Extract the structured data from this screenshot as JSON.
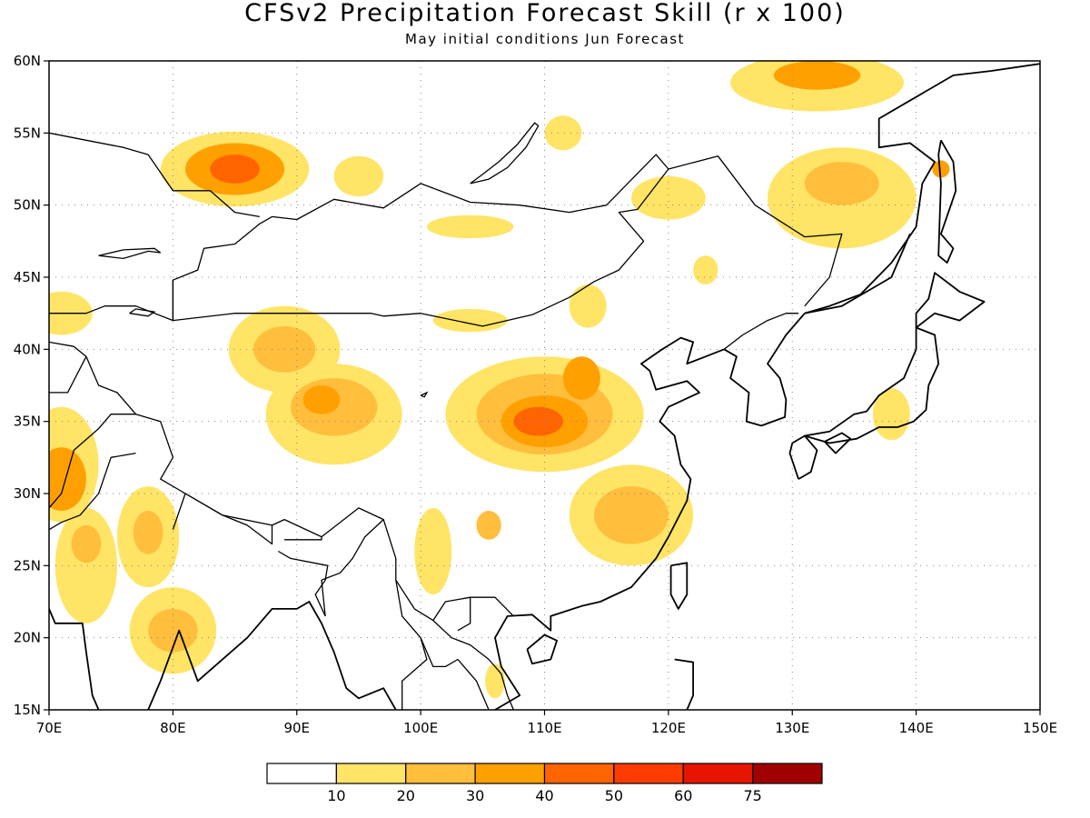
{
  "title": "CFSv2 Precipitation Forecast Skill (r x 100)",
  "subtitle": "May initial conditions  Jun Forecast",
  "map": {
    "lon_range": [
      70,
      150
    ],
    "lat_range": [
      15,
      60
    ],
    "lon_ticks": [
      {
        "value": 70,
        "label": "70E"
      },
      {
        "value": 80,
        "label": "80E"
      },
      {
        "value": 90,
        "label": "90E"
      },
      {
        "value": 100,
        "label": "100E"
      },
      {
        "value": 110,
        "label": "110E"
      },
      {
        "value": 120,
        "label": "120E"
      },
      {
        "value": 130,
        "label": "130E"
      },
      {
        "value": 140,
        "label": "140E"
      },
      {
        "value": 150,
        "label": "150E"
      }
    ],
    "lat_ticks": [
      {
        "value": 15,
        "label": "15N"
      },
      {
        "value": 20,
        "label": "20N"
      },
      {
        "value": 25,
        "label": "25N"
      },
      {
        "value": 30,
        "label": "30N"
      },
      {
        "value": 35,
        "label": "35N"
      },
      {
        "value": 40,
        "label": "40N"
      },
      {
        "value": 45,
        "label": "45N"
      },
      {
        "value": 50,
        "label": "50N"
      },
      {
        "value": 55,
        "label": "55N"
      },
      {
        "value": 60,
        "label": "60N"
      }
    ],
    "grid": "dotted"
  },
  "colorbar": {
    "colors": [
      "#ffffff",
      "#ffe466",
      "#ffbe3c",
      "#ffa000",
      "#ff6400",
      "#ff3c00",
      "#e61400",
      "#a00000"
    ],
    "labels": [
      "10",
      "20",
      "30",
      "40",
      "50",
      "60",
      "75"
    ]
  },
  "skill_regions": [
    {
      "lon": 85,
      "lat": 52.5,
      "rx": 6,
      "ry": 2.6,
      "level": 1
    },
    {
      "lon": 85,
      "lat": 52.5,
      "rx": 4,
      "ry": 1.8,
      "level": 3
    },
    {
      "lon": 85,
      "lat": 52.5,
      "rx": 2,
      "ry": 1,
      "level": 4
    },
    {
      "lon": 95,
      "lat": 52,
      "rx": 2,
      "ry": 1.4,
      "level": 1
    },
    {
      "lon": 132,
      "lat": 58.5,
      "rx": 7,
      "ry": 2,
      "level": 1
    },
    {
      "lon": 132,
      "lat": 59,
      "rx": 3.5,
      "ry": 1,
      "level": 3
    },
    {
      "lon": 134,
      "lat": 50.5,
      "rx": 6,
      "ry": 3.5,
      "level": 1
    },
    {
      "lon": 134,
      "lat": 51.5,
      "rx": 3,
      "ry": 1.5,
      "level": 2
    },
    {
      "lon": 89,
      "lat": 40,
      "rx": 4.5,
      "ry": 3,
      "level": 1
    },
    {
      "lon": 89,
      "lat": 40,
      "rx": 2.5,
      "ry": 1.6,
      "level": 2
    },
    {
      "lon": 93,
      "lat": 35.5,
      "rx": 5.5,
      "ry": 3.5,
      "level": 1
    },
    {
      "lon": 93,
      "lat": 36,
      "rx": 3.5,
      "ry": 2,
      "level": 2
    },
    {
      "lon": 92,
      "lat": 36.5,
      "rx": 1.5,
      "ry": 1,
      "level": 3
    },
    {
      "lon": 110,
      "lat": 35.5,
      "rx": 8,
      "ry": 4,
      "level": 1
    },
    {
      "lon": 110,
      "lat": 35.5,
      "rx": 5.5,
      "ry": 2.8,
      "level": 2
    },
    {
      "lon": 110,
      "lat": 35,
      "rx": 3.5,
      "ry": 1.8,
      "level": 3
    },
    {
      "lon": 109.5,
      "lat": 35,
      "rx": 2,
      "ry": 1,
      "level": 4
    },
    {
      "lon": 113,
      "lat": 38,
      "rx": 1.5,
      "ry": 1.5,
      "level": 3
    },
    {
      "lon": 117,
      "lat": 28.5,
      "rx": 5,
      "ry": 3.5,
      "level": 1
    },
    {
      "lon": 117,
      "lat": 28.5,
      "rx": 3,
      "ry": 2,
      "level": 2
    },
    {
      "lon": 71,
      "lat": 32,
      "rx": 3,
      "ry": 4,
      "level": 1
    },
    {
      "lon": 71,
      "lat": 31,
      "rx": 2,
      "ry": 2.2,
      "level": 3
    },
    {
      "lon": 73,
      "lat": 25,
      "rx": 2.5,
      "ry": 4,
      "level": 1
    },
    {
      "lon": 73,
      "lat": 26.5,
      "rx": 1.2,
      "ry": 1.3,
      "level": 2
    },
    {
      "lon": 78,
      "lat": 27,
      "rx": 2.5,
      "ry": 3.5,
      "level": 1
    },
    {
      "lon": 78,
      "lat": 27.3,
      "rx": 1.2,
      "ry": 1.5,
      "level": 2
    },
    {
      "lon": 80,
      "lat": 20.5,
      "rx": 3.5,
      "ry": 3,
      "level": 1
    },
    {
      "lon": 80,
      "lat": 20.5,
      "rx": 2,
      "ry": 1.5,
      "level": 2
    },
    {
      "lon": 71,
      "lat": 42.5,
      "rx": 2.5,
      "ry": 1.5,
      "level": 1
    },
    {
      "lon": 101,
      "lat": 26,
      "rx": 1.5,
      "ry": 3,
      "level": 1
    },
    {
      "lon": 105.5,
      "lat": 27.8,
      "rx": 1,
      "ry": 1,
      "level": 2
    },
    {
      "lon": 120,
      "lat": 50.5,
      "rx": 3,
      "ry": 1.5,
      "level": 1
    },
    {
      "lon": 113.5,
      "lat": 43,
      "rx": 1.5,
      "ry": 1.5,
      "level": 1
    },
    {
      "lon": 138,
      "lat": 35.5,
      "rx": 1.5,
      "ry": 1.8,
      "level": 1
    },
    {
      "lon": 142,
      "lat": 52.5,
      "rx": 0.7,
      "ry": 0.6,
      "level": 3
    },
    {
      "lon": 104,
      "lat": 48.5,
      "rx": 3.5,
      "ry": 0.8,
      "level": 1
    },
    {
      "lon": 104,
      "lat": 42,
      "rx": 3,
      "ry": 0.8,
      "level": 1
    },
    {
      "lon": 111.5,
      "lat": 55,
      "rx": 1.5,
      "ry": 1.2,
      "level": 1
    },
    {
      "lon": 123,
      "lat": 45.5,
      "rx": 1,
      "ry": 1,
      "level": 1
    },
    {
      "lon": 106,
      "lat": 17,
      "rx": 0.8,
      "ry": 1.2,
      "level": 1
    }
  ],
  "coastlines": [
    [
      [
        78,
        15
      ],
      [
        79,
        17
      ],
      [
        80.5,
        20.5
      ],
      [
        82,
        17
      ],
      [
        86,
        20
      ],
      [
        88,
        22
      ],
      [
        90,
        22
      ],
      [
        91,
        22.5
      ],
      [
        92,
        21
      ],
      [
        93,
        19
      ],
      [
        94,
        16.5
      ],
      [
        95,
        15.8
      ],
      [
        97,
        16.5
      ],
      [
        98,
        15
      ]
    ],
    [
      [
        70,
        22
      ],
      [
        70.5,
        21
      ],
      [
        72.7,
        21
      ],
      [
        73,
        19
      ],
      [
        73.5,
        16
      ],
      [
        74,
        15
      ]
    ],
    [
      [
        70,
        23
      ],
      [
        68.5,
        23.5
      ]
    ],
    [
      [
        100,
        15
      ],
      [
        100,
        13
      ],
      [
        101,
        12.5
      ],
      [
        103,
        12
      ]
    ],
    [
      [
        106,
        15
      ],
      [
        108,
        16
      ],
      [
        106.5,
        18
      ],
      [
        106,
        20
      ],
      [
        107,
        21.5
      ],
      [
        109,
        21.6
      ],
      [
        110.5,
        20.5
      ],
      [
        110.5,
        21.5
      ],
      [
        113,
        22.2
      ],
      [
        114.5,
        22.5
      ],
      [
        117,
        23.5
      ],
      [
        119,
        25.5
      ],
      [
        120,
        27
      ],
      [
        121.5,
        29.5
      ],
      [
        121.8,
        31
      ],
      [
        121,
        32
      ],
      [
        120.5,
        34
      ],
      [
        119.3,
        35
      ],
      [
        120,
        36
      ],
      [
        122.5,
        37
      ],
      [
        121.5,
        37.8
      ],
      [
        119,
        37.2
      ],
      [
        118.5,
        38.5
      ],
      [
        117.8,
        39
      ],
      [
        119.5,
        40
      ],
      [
        121,
        40.8
      ],
      [
        122,
        40.5
      ],
      [
        121.5,
        39
      ],
      [
        123,
        39.5
      ],
      [
        124.5,
        40
      ]
    ],
    [
      [
        124.5,
        40
      ],
      [
        125.5,
        39.5
      ],
      [
        125,
        38
      ],
      [
        126.5,
        37
      ],
      [
        126.3,
        35
      ],
      [
        127.5,
        34.7
      ],
      [
        129.4,
        35.3
      ],
      [
        129.5,
        36.5
      ],
      [
        129,
        38
      ],
      [
        128,
        39
      ],
      [
        129.5,
        41
      ],
      [
        131,
        42.5
      ]
    ],
    [
      [
        131,
        42.5
      ],
      [
        133,
        43
      ],
      [
        135.5,
        43.8
      ],
      [
        138,
        46
      ],
      [
        140,
        48.5
      ],
      [
        140.5,
        51.5
      ],
      [
        141.5,
        53
      ],
      [
        139.5,
        54.3
      ],
      [
        137,
        54
      ],
      [
        137,
        56
      ],
      [
        140,
        57.5
      ],
      [
        143,
        59
      ],
      [
        146,
        59.3
      ],
      [
        150,
        59.8
      ]
    ],
    [
      [
        142,
        54.5
      ],
      [
        143,
        53
      ],
      [
        143.2,
        51
      ],
      [
        142,
        48
      ],
      [
        143,
        47
      ],
      [
        142.5,
        46
      ],
      [
        141.8,
        46.5
      ],
      [
        141.9,
        49
      ],
      [
        142,
        51.5
      ],
      [
        141.8,
        53.5
      ],
      [
        142,
        54.5
      ]
    ],
    [
      [
        130.5,
        31
      ],
      [
        131.5,
        31.5
      ],
      [
        132,
        33
      ],
      [
        131,
        34
      ],
      [
        130,
        33.5
      ],
      [
        129.8,
        32.8
      ],
      [
        130.5,
        31
      ]
    ],
    [
      [
        131,
        34
      ],
      [
        133,
        34.3
      ],
      [
        135,
        35.5
      ],
      [
        136,
        35.7
      ],
      [
        137,
        36.8
      ],
      [
        139,
        38
      ],
      [
        140,
        40
      ],
      [
        140,
        41.5
      ],
      [
        141.5,
        41
      ],
      [
        141.8,
        39
      ],
      [
        141,
        37.5
      ],
      [
        140.8,
        35.8
      ],
      [
        139.8,
        35
      ],
      [
        138.5,
        34.6
      ],
      [
        137,
        34.6
      ],
      [
        135.2,
        33.8
      ],
      [
        133,
        33.5
      ],
      [
        131,
        34
      ]
    ],
    [
      [
        132.6,
        33.6
      ],
      [
        134,
        34.2
      ],
      [
        134.7,
        33.8
      ],
      [
        133.5,
        32.8
      ],
      [
        132.6,
        33.6
      ]
    ],
    [
      [
        140,
        41.5
      ],
      [
        140,
        42.5
      ],
      [
        141,
        43.5
      ],
      [
        141.5,
        45.3
      ],
      [
        143.5,
        44
      ],
      [
        145.5,
        43.3
      ],
      [
        143.5,
        42
      ],
      [
        141.5,
        42.5
      ],
      [
        140,
        41.5
      ]
    ],
    [
      [
        120.2,
        25
      ],
      [
        121.5,
        25.2
      ],
      [
        121.5,
        23
      ],
      [
        120.8,
        22
      ],
      [
        120.2,
        23
      ],
      [
        120.2,
        25
      ]
    ],
    [
      [
        108.6,
        19.2
      ],
      [
        109,
        18.2
      ],
      [
        110.5,
        18.5
      ],
      [
        111,
        19.8
      ],
      [
        110,
        20.2
      ],
      [
        108.6,
        19.2
      ]
    ],
    [
      [
        120.5,
        18.5
      ],
      [
        122,
        18.3
      ],
      [
        122,
        16
      ],
      [
        121.5,
        15
      ]
    ],
    [
      [
        139.5,
        48
      ],
      [
        138,
        45
      ],
      [
        136,
        44
      ],
      [
        134,
        43
      ],
      [
        131,
        42.5
      ]
    ]
  ],
  "boundaries": [
    [
      [
        80,
        42
      ],
      [
        85,
        42.5
      ],
      [
        90,
        42.5
      ],
      [
        96,
        42.5
      ],
      [
        97,
        42.3
      ],
      [
        100,
        42.5
      ],
      [
        105,
        41.6
      ],
      [
        109,
        42.4
      ],
      [
        112,
        43.6
      ],
      [
        114,
        44.7
      ],
      [
        116,
        45.5
      ],
      [
        118,
        47.5
      ],
      [
        116,
        49.5
      ],
      [
        117.5,
        49.7
      ],
      [
        120,
        52.5
      ],
      [
        119,
        53.5
      ],
      [
        115,
        50
      ],
      [
        112,
        49.5
      ],
      [
        108,
        50
      ],
      [
        104,
        50.2
      ],
      [
        100,
        51.5
      ],
      [
        97,
        49.8
      ],
      [
        93,
        50.4
      ],
      [
        90,
        49
      ],
      [
        88,
        49.2
      ],
      [
        87,
        48.7
      ],
      [
        85,
        47.3
      ],
      [
        82.5,
        47
      ],
      [
        82,
        45.5
      ],
      [
        80,
        44.8
      ],
      [
        80,
        42
      ]
    ],
    [
      [
        120,
        52.5
      ],
      [
        124,
        53.4
      ],
      [
        127,
        50
      ],
      [
        131,
        47.8
      ],
      [
        134,
        48
      ],
      [
        133,
        45
      ],
      [
        131,
        43
      ]
    ],
    [
      [
        73,
        39.5
      ],
      [
        74,
        37.5
      ],
      [
        75.5,
        37
      ],
      [
        77,
        35.5
      ],
      [
        79,
        35
      ],
      [
        80,
        32.5
      ],
      [
        79,
        31
      ],
      [
        81,
        30
      ],
      [
        84,
        28.5
      ],
      [
        88,
        27.8
      ],
      [
        89,
        28.2
      ],
      [
        92,
        27
      ],
      [
        95,
        29
      ],
      [
        97,
        28.2
      ],
      [
        98,
        25.5
      ],
      [
        98,
        24
      ],
      [
        99.5,
        22
      ],
      [
        101,
        21.2
      ],
      [
        102,
        22.5
      ],
      [
        104,
        22.8
      ],
      [
        106,
        22.8
      ],
      [
        107.5,
        21.5
      ]
    ],
    [
      [
        70,
        42.5
      ],
      [
        73,
        42.5
      ],
      [
        74.5,
        43
      ],
      [
        77,
        43
      ],
      [
        80,
        42
      ],
      [
        80,
        44.8
      ]
    ],
    [
      [
        70,
        55
      ],
      [
        73,
        54.5
      ],
      [
        76,
        54
      ],
      [
        78,
        53.5
      ],
      [
        80,
        51
      ],
      [
        83,
        51
      ],
      [
        85,
        49.5
      ],
      [
        87,
        49.2
      ]
    ],
    [
      [
        70,
        37
      ],
      [
        71.5,
        37
      ],
      [
        73,
        39.5
      ]
    ],
    [
      [
        70,
        40.5
      ],
      [
        72,
        40.2
      ],
      [
        73,
        39.5
      ]
    ],
    [
      [
        70,
        29
      ],
      [
        71,
        30
      ],
      [
        72,
        33
      ],
      [
        74,
        34.5
      ],
      [
        75,
        35.5
      ],
      [
        77,
        35.5
      ]
    ],
    [
      [
        70,
        27.5
      ],
      [
        71,
        28
      ],
      [
        72.5,
        28.5
      ],
      [
        74,
        30
      ],
      [
        75,
        32.5
      ],
      [
        77,
        32.8
      ]
    ],
    [
      [
        80,
        27.5
      ],
      [
        81,
        30
      ],
      [
        84,
        28.5
      ],
      [
        86,
        27.8
      ],
      [
        88,
        26.5
      ],
      [
        88,
        27.8
      ]
    ],
    [
      [
        89,
        26.8
      ],
      [
        92,
        26.8
      ],
      [
        92,
        27
      ]
    ],
    [
      [
        88.5,
        26
      ],
      [
        89.5,
        25.5
      ],
      [
        92.5,
        25
      ],
      [
        92.3,
        24
      ],
      [
        91.5,
        23
      ],
      [
        92.3,
        21.5
      ]
    ],
    [
      [
        92.3,
        21.5
      ],
      [
        92,
        24
      ],
      [
        93.5,
        24.5
      ],
      [
        94.5,
        25.5
      ],
      [
        95.5,
        27
      ],
      [
        97,
        28.2
      ]
    ],
    [
      [
        98,
        24
      ],
      [
        98.5,
        21.5
      ],
      [
        100,
        20
      ],
      [
        100.5,
        18.5
      ],
      [
        98.5,
        17
      ],
      [
        98.5,
        15
      ]
    ],
    [
      [
        100,
        20
      ],
      [
        101,
        18
      ],
      [
        102,
        18
      ],
      [
        103,
        18.5
      ],
      [
        104.5,
        17
      ],
      [
        105.5,
        15
      ]
    ],
    [
      [
        101,
        21.2
      ],
      [
        102.5,
        20
      ],
      [
        104,
        19.5
      ],
      [
        105.5,
        18.5
      ],
      [
        106.5,
        17.5
      ],
      [
        107,
        16
      ],
      [
        107.5,
        15
      ]
    ],
    [
      [
        104,
        22.8
      ],
      [
        104,
        21
      ],
      [
        103,
        20.5
      ]
    ],
    [
      [
        124.5,
        40
      ],
      [
        126,
        41
      ],
      [
        128,
        42
      ],
      [
        129.5,
        42.5
      ],
      [
        130.5,
        42.5
      ]
    ]
  ],
  "lakes": [
    [
      [
        104,
        51.5
      ],
      [
        105.5,
        51.8
      ],
      [
        107,
        52.6
      ],
      [
        108.5,
        54
      ],
      [
        109.5,
        55.5
      ],
      [
        109.2,
        55.7
      ],
      [
        107.8,
        54.2
      ],
      [
        106.3,
        53
      ],
      [
        104.8,
        52
      ],
      [
        104,
        51.5
      ]
    ],
    [
      [
        74,
        46.5
      ],
      [
        76,
        46.3
      ],
      [
        78,
        46.8
      ],
      [
        79,
        46.7
      ],
      [
        78.5,
        47
      ],
      [
        76,
        46.9
      ],
      [
        74,
        46.5
      ]
    ],
    [
      [
        76.5,
        42.5
      ],
      [
        78,
        42.3
      ],
      [
        78.5,
        42.6
      ],
      [
        77,
        42.8
      ],
      [
        76.5,
        42.5
      ]
    ],
    [
      [
        100,
        36.8
      ],
      [
        100.5,
        37
      ],
      [
        100.3,
        36.7
      ],
      [
        100,
        36.8
      ]
    ]
  ]
}
